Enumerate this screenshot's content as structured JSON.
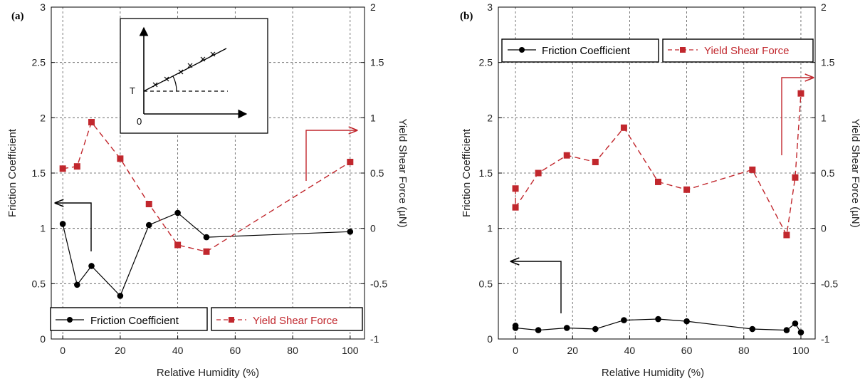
{
  "colors": {
    "friction": "#000000",
    "shear": "#c1272d",
    "grid": "#555555"
  },
  "chart_data": [
    {
      "type": "line",
      "panel_label": "(a)",
      "xlabel": "Relative Humidity (%)",
      "ylabel_left": "Friction Coefficient",
      "ylabel_right": "Yield Shear Force (µN)",
      "xlim": [
        -4,
        105
      ],
      "ylim_left": [
        0,
        3
      ],
      "ylim_right": [
        -1,
        2
      ],
      "x_ticks": [
        "0",
        "20",
        "40",
        "60",
        "80",
        "100"
      ],
      "y_ticks_left": [
        "0",
        "0.5",
        "1",
        "1.5",
        "2",
        "2.5",
        "3"
      ],
      "y_ticks_right": [
        "-1",
        "-0.5",
        "0",
        "0.5",
        "1",
        "1.5",
        "2"
      ],
      "legend": {
        "friction": "Friction Coefficient",
        "shear": "Yield Shear Force"
      },
      "inset": {
        "t_label": "T",
        "zero_label": "0"
      },
      "series": [
        {
          "name": "Friction Coefficient",
          "axis": "left",
          "style": "solid-circle",
          "x": [
            0,
            5,
            10,
            20,
            30,
            40,
            50,
            100
          ],
          "y": [
            1.04,
            0.49,
            0.66,
            0.39,
            1.03,
            1.14,
            0.92,
            0.97
          ]
        },
        {
          "name": "Yield Shear Force",
          "axis": "right",
          "style": "dashed-square",
          "x": [
            0,
            5,
            10,
            20,
            30,
            40,
            50,
            100
          ],
          "y": [
            0.54,
            0.56,
            0.96,
            0.63,
            0.22,
            -0.15,
            -0.21,
            0.6
          ]
        }
      ]
    },
    {
      "type": "line",
      "panel_label": "(b)",
      "xlabel": "Relative Humidity (%)",
      "ylabel_left": "Friction Coefficient",
      "ylabel_right": "Yield Shear Force (µN)",
      "xlim": [
        -6,
        105
      ],
      "ylim_left": [
        0,
        3
      ],
      "ylim_right": [
        -1,
        2
      ],
      "x_ticks": [
        "0",
        "20",
        "40",
        "60",
        "80",
        "100"
      ],
      "y_ticks_left": [
        "0",
        "0.5",
        "1",
        "1.5",
        "2",
        "2.5",
        "3"
      ],
      "y_ticks_right": [
        "-1",
        "-0.5",
        "0",
        "0.5",
        "1",
        "1.5",
        "2"
      ],
      "legend": {
        "friction": "Friction Coefficient",
        "shear": "Yield Shear Force"
      },
      "series": [
        {
          "name": "Friction Coefficient",
          "axis": "left",
          "style": "solid-circle",
          "x": [
            0,
            0,
            8,
            18,
            28,
            38,
            50,
            60,
            83,
            95,
            98,
            100
          ],
          "y": [
            0.12,
            0.1,
            0.08,
            0.1,
            0.09,
            0.17,
            0.18,
            0.16,
            0.09,
            0.08,
            0.14,
            0.06
          ]
        },
        {
          "name": "Yield Shear Force",
          "axis": "right",
          "style": "dashed-square",
          "x": [
            0,
            0,
            8,
            18,
            28,
            38,
            50,
            60,
            83,
            95,
            98,
            100
          ],
          "y": [
            0.36,
            0.19,
            0.5,
            0.66,
            0.6,
            0.91,
            0.42,
            0.35,
            0.53,
            -0.06,
            0.46,
            1.22
          ]
        }
      ]
    }
  ]
}
